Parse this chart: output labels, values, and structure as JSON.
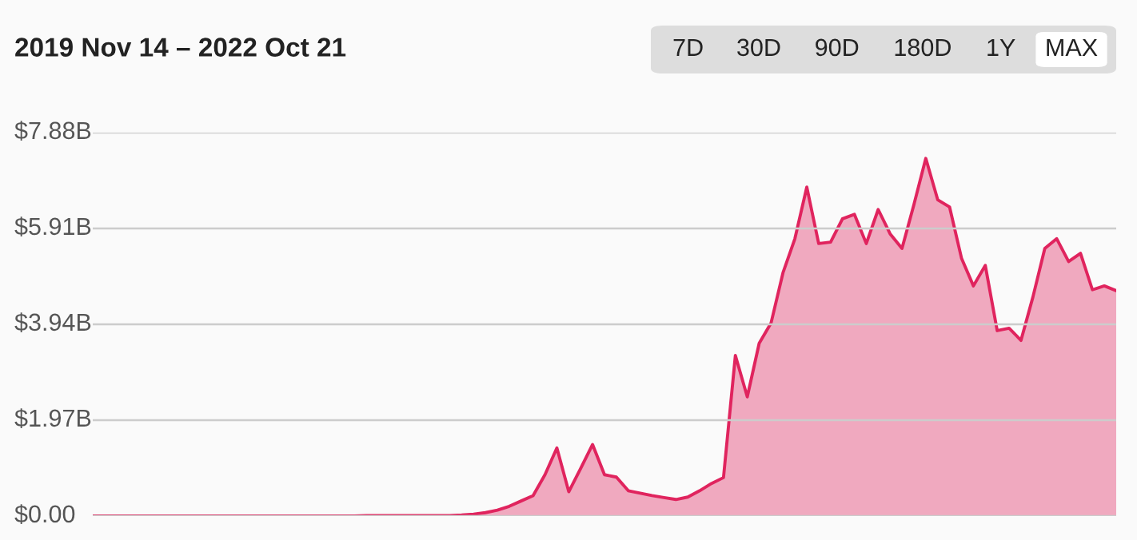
{
  "chart_data": {
    "type": "area",
    "title": "2019 Nov 14 – 2022 Oct 21",
    "annotations": [
      "7D",
      "30D",
      "90D",
      "180D",
      "1Y",
      "MAX"
    ],
    "categories": [
      null,
      null,
      null,
      null,
      null,
      null,
      null,
      null,
      null,
      null,
      null,
      null,
      null,
      null,
      null,
      null,
      null,
      null,
      null,
      null,
      null,
      null,
      null,
      null,
      null,
      null,
      null,
      null,
      null,
      null,
      null,
      null,
      null,
      null,
      null,
      null,
      null,
      null,
      null,
      null,
      null,
      null,
      null,
      null,
      null,
      null,
      null,
      null,
      null,
      null,
      null,
      null,
      null,
      null,
      null,
      null,
      null,
      null,
      null,
      null,
      null,
      null,
      null,
      null,
      null,
      null,
      null,
      null,
      null,
      null,
      null,
      null,
      null,
      null,
      null,
      null,
      null,
      null,
      null,
      null,
      null,
      null,
      null,
      null,
      null,
      null,
      null
    ],
    "ylim": [
      0,
      7.88
    ],
    "yticks": [
      {
        "value": 0,
        "label": "$0.00"
      },
      {
        "value": 1.97,
        "label": "$1.97B"
      },
      {
        "value": 3.94,
        "label": "$3.94B"
      },
      {
        "value": 5.91,
        "label": "$5.91B"
      },
      {
        "value": 7.88,
        "label": "$7.88B"
      }
    ],
    "tick_labels": "y",
    "grid": "y",
    "series": [
      {
        "color": "#e0245e",
        "values": [
          0,
          0,
          0,
          0,
          0,
          0,
          0,
          0,
          0,
          0,
          0,
          0,
          0,
          0,
          0,
          0,
          0,
          0,
          0,
          0,
          0,
          0,
          0,
          0.01,
          0.01,
          0.01,
          0.01,
          0.01,
          0.01,
          0.01,
          0.01,
          0.02,
          0.04,
          0.07,
          0.12,
          0.2,
          0.31,
          0.42,
          0.85,
          1.4,
          0.5,
          0.98,
          1.47,
          0.85,
          0.8,
          0.52,
          0.47,
          0.42,
          0.38,
          0.34,
          0.39,
          0.52,
          0.67,
          0.79,
          3.3,
          2.45,
          3.55,
          3.97,
          5.0,
          5.7,
          6.76,
          5.6,
          5.63,
          6.11,
          6.2,
          5.6,
          6.3,
          5.8,
          5.5,
          6.4,
          7.35,
          6.5,
          6.35,
          5.3,
          4.73,
          5.15,
          3.81,
          3.86,
          3.61,
          4.5,
          5.5,
          5.7,
          5.23,
          5.4,
          4.65,
          4.73,
          4.63
        ]
      }
    ]
  }
}
